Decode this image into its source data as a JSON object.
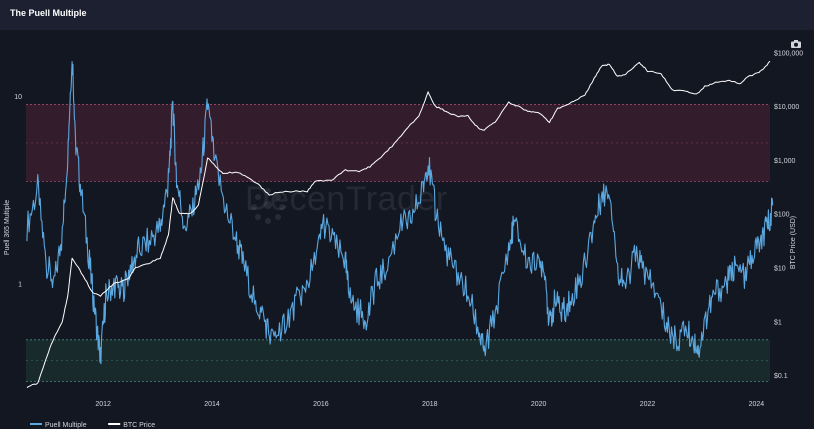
{
  "title": "The Puell Multiple",
  "watermark": "DecenTrader",
  "icons": {
    "camera": "camera-icon"
  },
  "chart_data": {
    "type": "line",
    "y_left_label": "Puell 365 Multiple",
    "y_right_label": "BTC Price (USD)",
    "y_left_scale": "log",
    "y_right_scale": "log",
    "y_left_ticks": [
      {
        "value": 10,
        "label": "10"
      },
      {
        "value": 1,
        "label": "1"
      }
    ],
    "y_right_ticks": [
      {
        "value": 100000,
        "label": "$100,000"
      },
      {
        "value": 10000,
        "label": "$10,000"
      },
      {
        "value": 1000,
        "label": "$1,000"
      },
      {
        "value": 100,
        "label": "$100"
      },
      {
        "value": 10,
        "label": "$10"
      },
      {
        "value": 1,
        "label": "$1"
      },
      {
        "value": 0.1,
        "label": "$0.1"
      }
    ],
    "x_ticks": [
      "2012",
      "2014",
      "2016",
      "2018",
      "2020",
      "2022",
      "2024"
    ],
    "xlim": [
      "2010-08",
      "2024-04"
    ],
    "y_left_range": [
      0.28,
      18
    ],
    "y_right_range": [
      0.06,
      120000
    ],
    "zones": [
      {
        "name": "upper",
        "from": 3.5,
        "to": 9,
        "color": "#3a1e2e"
      },
      {
        "name": "lower",
        "from": 0.3,
        "to": 0.5,
        "color": "#1b2e2e"
      }
    ],
    "series": [
      {
        "name": "Puell Multiple",
        "color": "#5ba8e0",
        "points": [
          [
            2010.6,
            2.0
          ],
          [
            2010.8,
            3.2
          ],
          [
            2010.95,
            1.3
          ],
          [
            2011.1,
            1.0
          ],
          [
            2011.25,
            1.8
          ],
          [
            2011.35,
            5.0
          ],
          [
            2011.43,
            17.0
          ],
          [
            2011.5,
            5.5
          ],
          [
            2011.6,
            3.0
          ],
          [
            2011.75,
            1.3
          ],
          [
            2011.85,
            0.7
          ],
          [
            2011.95,
            0.4
          ],
          [
            2012.05,
            0.85
          ],
          [
            2012.2,
            1.0
          ],
          [
            2012.35,
            0.9
          ],
          [
            2012.5,
            1.2
          ],
          [
            2012.65,
            1.5
          ],
          [
            2012.85,
            1.7
          ],
          [
            2013.05,
            2.0
          ],
          [
            2013.2,
            3.5
          ],
          [
            2013.28,
            9.0
          ],
          [
            2013.35,
            3.5
          ],
          [
            2013.5,
            2.0
          ],
          [
            2013.65,
            2.5
          ],
          [
            2013.8,
            4.0
          ],
          [
            2013.92,
            9.0
          ],
          [
            2014.05,
            4.5
          ],
          [
            2014.25,
            2.5
          ],
          [
            2014.45,
            1.7
          ],
          [
            2014.6,
            1.2
          ],
          [
            2014.8,
            0.8
          ],
          [
            2014.95,
            0.65
          ],
          [
            2015.1,
            0.5
          ],
          [
            2015.3,
            0.6
          ],
          [
            2015.5,
            0.75
          ],
          [
            2015.7,
            0.95
          ],
          [
            2015.9,
            1.3
          ],
          [
            2016.05,
            2.1
          ],
          [
            2016.25,
            1.6
          ],
          [
            2016.45,
            1.3
          ],
          [
            2016.52,
            0.85
          ],
          [
            2016.7,
            0.7
          ],
          [
            2016.85,
            0.65
          ],
          [
            2017.0,
            1.0
          ],
          [
            2017.2,
            1.2
          ],
          [
            2017.45,
            2.0
          ],
          [
            2017.65,
            2.2
          ],
          [
            2017.85,
            3.0
          ],
          [
            2017.97,
            4.5
          ],
          [
            2018.1,
            2.5
          ],
          [
            2018.3,
            1.5
          ],
          [
            2018.5,
            1.1
          ],
          [
            2018.7,
            0.9
          ],
          [
            2018.9,
            0.55
          ],
          [
            2019.0,
            0.42
          ],
          [
            2019.2,
            0.7
          ],
          [
            2019.45,
            1.5
          ],
          [
            2019.55,
            2.1
          ],
          [
            2019.75,
            1.4
          ],
          [
            2019.95,
            1.2
          ],
          [
            2020.1,
            1.3
          ],
          [
            2020.2,
            0.6
          ],
          [
            2020.3,
            0.8
          ],
          [
            2020.45,
            0.7
          ],
          [
            2020.6,
            0.85
          ],
          [
            2020.8,
            1.1
          ],
          [
            2021.0,
            2.0
          ],
          [
            2021.15,
            2.8
          ],
          [
            2021.3,
            3.3
          ],
          [
            2021.45,
            1.2
          ],
          [
            2021.6,
            1.0
          ],
          [
            2021.8,
            1.5
          ],
          [
            2021.95,
            1.1
          ],
          [
            2022.15,
            0.9
          ],
          [
            2022.35,
            0.6
          ],
          [
            2022.5,
            0.5
          ],
          [
            2022.7,
            0.55
          ],
          [
            2022.85,
            0.5
          ],
          [
            2022.95,
            0.45
          ],
          [
            2023.1,
            0.7
          ],
          [
            2023.25,
            0.9
          ],
          [
            2023.45,
            1.0
          ],
          [
            2023.6,
            1.2
          ],
          [
            2023.8,
            1.1
          ],
          [
            2023.95,
            1.5
          ],
          [
            2024.1,
            1.7
          ],
          [
            2024.2,
            2.0
          ],
          [
            2024.3,
            2.6
          ]
        ]
      },
      {
        "name": "BTC Price",
        "color": "#ffffff",
        "points": [
          [
            2010.6,
            0.06
          ],
          [
            2010.8,
            0.07
          ],
          [
            2010.95,
            0.2
          ],
          [
            2011.1,
            0.5
          ],
          [
            2011.25,
            1.0
          ],
          [
            2011.35,
            3.0
          ],
          [
            2011.43,
            15.0
          ],
          [
            2011.6,
            8.0
          ],
          [
            2011.8,
            3.5
          ],
          [
            2011.95,
            3.0
          ],
          [
            2012.2,
            5.0
          ],
          [
            2012.45,
            6.0
          ],
          [
            2012.6,
            10.0
          ],
          [
            2012.85,
            12.0
          ],
          [
            2013.05,
            15.0
          ],
          [
            2013.2,
            40.0
          ],
          [
            2013.28,
            200.0
          ],
          [
            2013.4,
            100.0
          ],
          [
            2013.6,
            100.0
          ],
          [
            2013.75,
            140.0
          ],
          [
            2013.92,
            1100.0
          ],
          [
            2014.05,
            800.0
          ],
          [
            2014.2,
            550.0
          ],
          [
            2014.45,
            600.0
          ],
          [
            2014.6,
            500.0
          ],
          [
            2014.85,
            350.0
          ],
          [
            2015.05,
            220.0
          ],
          [
            2015.2,
            250.0
          ],
          [
            2015.5,
            260.0
          ],
          [
            2015.75,
            260.0
          ],
          [
            2015.9,
            400.0
          ],
          [
            2016.2,
            420.0
          ],
          [
            2016.45,
            650.0
          ],
          [
            2016.7,
            600.0
          ],
          [
            2016.9,
            750.0
          ],
          [
            2017.1,
            1100.0
          ],
          [
            2017.35,
            2000.0
          ],
          [
            2017.6,
            4000.0
          ],
          [
            2017.8,
            6500.0
          ],
          [
            2017.97,
            18000.0
          ],
          [
            2018.1,
            10000.0
          ],
          [
            2018.3,
            8000.0
          ],
          [
            2018.5,
            6500.0
          ],
          [
            2018.7,
            6500.0
          ],
          [
            2018.9,
            3800.0
          ],
          [
            2019.0,
            3600.0
          ],
          [
            2019.2,
            5000.0
          ],
          [
            2019.45,
            12000.0
          ],
          [
            2019.6,
            10000.0
          ],
          [
            2019.8,
            8000.0
          ],
          [
            2020.0,
            7500.0
          ],
          [
            2020.2,
            5000.0
          ],
          [
            2020.35,
            9000.0
          ],
          [
            2020.6,
            11500.0
          ],
          [
            2020.85,
            16000.0
          ],
          [
            2021.0,
            30000.0
          ],
          [
            2021.15,
            55000.0
          ],
          [
            2021.3,
            60000.0
          ],
          [
            2021.45,
            35000.0
          ],
          [
            2021.6,
            40000.0
          ],
          [
            2021.85,
            65000.0
          ],
          [
            2022.0,
            45000.0
          ],
          [
            2022.25,
            40000.0
          ],
          [
            2022.45,
            20000.0
          ],
          [
            2022.7,
            19000.0
          ],
          [
            2022.9,
            16500.0
          ],
          [
            2023.05,
            23000.0
          ],
          [
            2023.25,
            28000.0
          ],
          [
            2023.5,
            30000.0
          ],
          [
            2023.7,
            26000.0
          ],
          [
            2023.85,
            35000.0
          ],
          [
            2024.05,
            42000.0
          ],
          [
            2024.15,
            52000.0
          ],
          [
            2024.25,
            68000.0
          ]
        ]
      }
    ],
    "legend": [
      {
        "name": "Puell Multiple",
        "color": "#5ba8e0"
      },
      {
        "name": "BTC Price",
        "color": "#ffffff"
      }
    ],
    "legend_position": "bottom-left"
  }
}
